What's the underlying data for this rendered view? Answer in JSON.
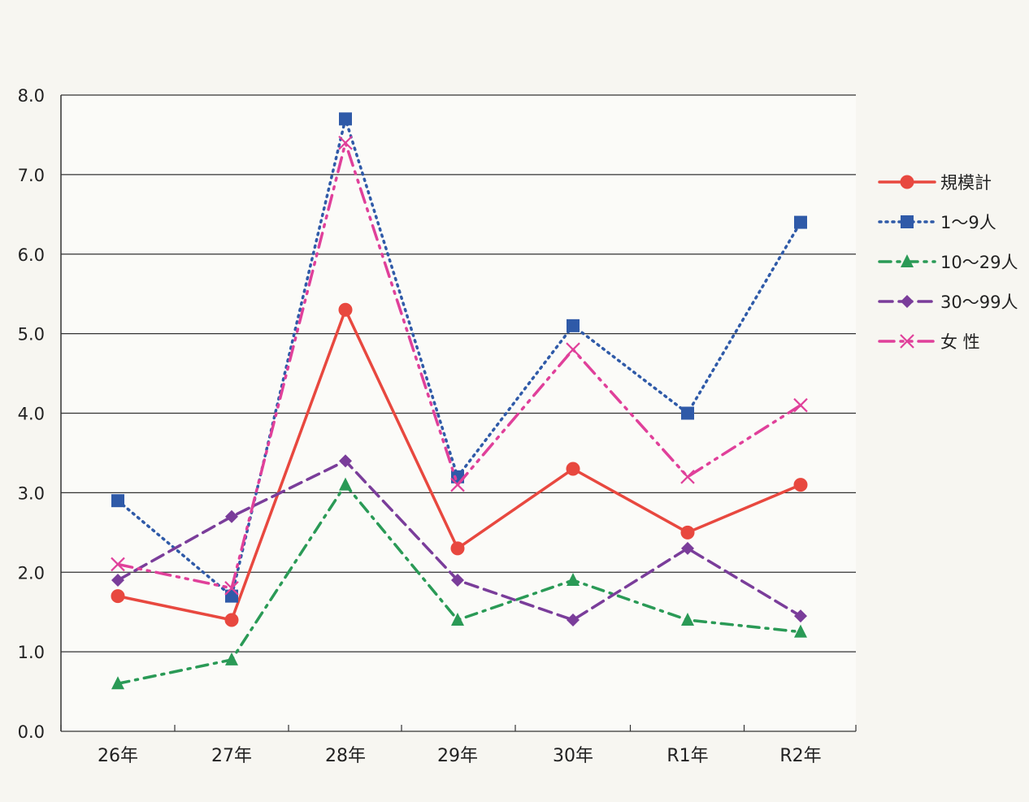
{
  "chart_data": {
    "type": "line",
    "categories": [
      "26年",
      "27年",
      "28年",
      "29年",
      "30年",
      "R1年",
      "R2年"
    ],
    "ylim": [
      0,
      8
    ],
    "yticks": [
      "0.0",
      "1.0",
      "2.0",
      "3.0",
      "4.0",
      "5.0",
      "6.0",
      "7.0",
      "8.0"
    ],
    "grid": true,
    "legend_position": "right",
    "series": [
      {
        "name": "規模計",
        "values": [
          1.7,
          1.4,
          5.3,
          2.3,
          3.3,
          2.5,
          3.1
        ],
        "color": "#e8483f",
        "marker": "circle",
        "dash": "solid"
      },
      {
        "name": "1〜9人",
        "values": [
          2.9,
          1.7,
          7.7,
          3.2,
          5.1,
          4.0,
          6.4
        ],
        "color": "#2f5aa8",
        "marker": "square",
        "dash": "dotted"
      },
      {
        "name": "10〜29人",
        "values": [
          0.6,
          0.9,
          3.1,
          1.4,
          1.9,
          1.4,
          1.25
        ],
        "color": "#2a9a56",
        "marker": "triangle",
        "dash": "dashdot"
      },
      {
        "name": "30〜99人",
        "values": [
          1.9,
          2.7,
          3.4,
          1.9,
          1.4,
          2.3,
          1.45
        ],
        "color": "#7a3d9a",
        "marker": "diamond",
        "dash": "dashed"
      },
      {
        "name": "女 性",
        "values": [
          2.1,
          1.8,
          7.4,
          3.1,
          4.8,
          3.2,
          4.1
        ],
        "color": "#e0409a",
        "marker": "x",
        "dash": "dashdotdot"
      }
    ]
  }
}
